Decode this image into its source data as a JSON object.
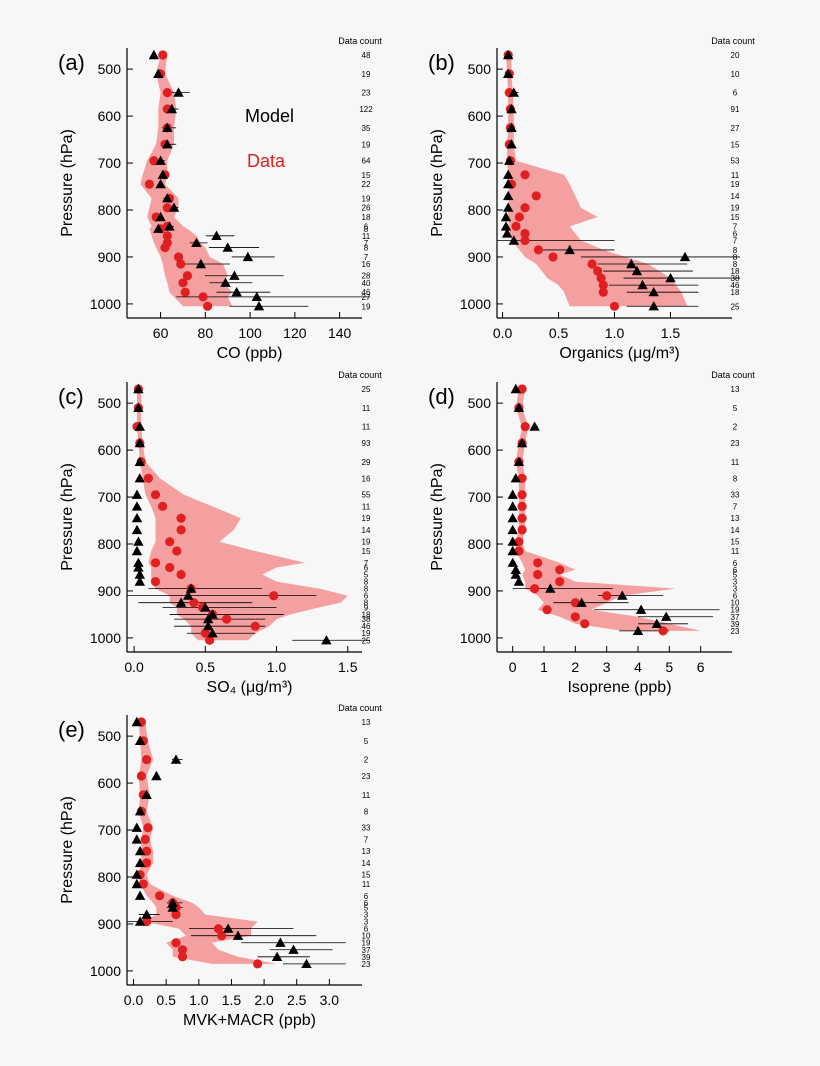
{
  "colors": {
    "data": "#e02020",
    "band": "#f59090",
    "model": "#000000",
    "background": "#f7f7f7"
  },
  "legend": {
    "model_label": "Model",
    "data_label": "Data"
  },
  "chart_data": [
    {
      "type": "scatter",
      "panel_label": "(a)",
      "xlabel": "CO (ppb)",
      "ylabel": "Pressure (hPa)",
      "xlim": [
        45,
        150
      ],
      "ylim": [
        1030,
        455
      ],
      "xticks": [
        "60",
        "80",
        "100",
        "120",
        "140"
      ],
      "yticks": [
        "500",
        "600",
        "700",
        "800",
        "900",
        "1000"
      ],
      "count_title": "Data count",
      "counts": [
        "48",
        "19",
        "23",
        "122",
        "35",
        "19",
        "64",
        "15",
        "22",
        "19",
        "26",
        "18",
        "6",
        "8",
        "11",
        "7",
        "8",
        "7",
        "16",
        "28",
        "40",
        "46",
        "27",
        "19"
      ],
      "pressure": [
        470,
        510,
        550,
        585,
        625,
        660,
        695,
        725,
        745,
        775,
        795,
        815,
        835,
        840,
        855,
        870,
        880,
        900,
        915,
        940,
        955,
        975,
        985,
        1005
      ],
      "data_values": [
        61,
        60,
        63,
        63,
        63,
        62,
        57,
        62,
        55,
        64,
        63,
        58,
        63,
        60,
        63,
        63,
        62,
        68,
        69,
        72,
        70,
        71,
        79,
        81
      ],
      "model_values": [
        57,
        59,
        68,
        65,
        63,
        63,
        60,
        61,
        60,
        63,
        66,
        60,
        64,
        59,
        85,
        76,
        90,
        99,
        78,
        93,
        89,
        94,
        103,
        104
      ],
      "model_err": [
        1,
        1,
        5,
        3,
        4,
        4,
        2,
        2,
        1,
        3,
        2,
        1,
        2,
        1,
        8,
        5,
        14,
        12,
        13,
        22,
        12,
        15,
        60,
        22
      ],
      "band_low": [
        60,
        58,
        60,
        59,
        59,
        58,
        54,
        52,
        51,
        56,
        55,
        54,
        56,
        55,
        56,
        57,
        58,
        60,
        61,
        62,
        63,
        64,
        66,
        70
      ],
      "band_high": [
        63,
        62,
        66,
        67,
        66,
        66,
        63,
        63,
        62,
        68,
        68,
        66,
        70,
        72,
        76,
        78,
        80,
        82,
        88,
        90,
        88,
        92,
        90,
        92
      ]
    },
    {
      "type": "scatter",
      "panel_label": "(b)",
      "xlabel": "Organics (μg/m³)",
      "ylabel": "Pressure (hPa)",
      "xlim": [
        -0.05,
        2.05
      ],
      "ylim": [
        1030,
        455
      ],
      "xticks": [
        "0.0",
        "0.5",
        "1.0",
        "1.5"
      ],
      "yticks": [
        "500",
        "600",
        "700",
        "800",
        "900",
        "1000"
      ],
      "count_title": "Data count",
      "counts": [
        "20",
        "10",
        "6",
        "91",
        "27",
        "15",
        "53",
        "11",
        "19",
        "14",
        "19",
        "15",
        "7",
        "6",
        "7",
        "8",
        "8",
        "8",
        "18",
        "38",
        "46",
        "18",
        "25"
      ],
      "pressure": [
        470,
        510,
        550,
        585,
        625,
        660,
        695,
        725,
        745,
        770,
        795,
        815,
        835,
        850,
        865,
        885,
        900,
        915,
        930,
        945,
        960,
        975,
        1005
      ],
      "data_values": [
        0.05,
        0.06,
        0.06,
        0.07,
        0.07,
        0.06,
        0.07,
        0.2,
        0.08,
        0.3,
        0.2,
        0.15,
        0.12,
        0.2,
        0.2,
        0.32,
        0.45,
        0.8,
        0.85,
        0.88,
        0.9,
        0.9,
        1.0
      ],
      "model_values": [
        0.05,
        0.05,
        0.1,
        0.08,
        0.08,
        0.08,
        0.06,
        0.05,
        0.05,
        0.05,
        0.05,
        0.03,
        0.03,
        0.04,
        0.1,
        0.6,
        1.63,
        1.15,
        1.2,
        1.5,
        1.25,
        1.35,
        1.35
      ],
      "model_err": [
        0.02,
        0.02,
        0.04,
        0.02,
        0.02,
        0.02,
        0.02,
        0.02,
        0.02,
        0.01,
        0.01,
        0.01,
        0.01,
        0.02,
        0.9,
        0.4,
        1.55,
        0.5,
        0.5,
        0.7,
        0.5,
        0.4,
        0.4
      ],
      "band_low": [
        0.03,
        0.04,
        0.05,
        0.05,
        0.05,
        0.04,
        0.04,
        0.05,
        0.05,
        0.06,
        0.05,
        0.05,
        0.06,
        0.06,
        0.08,
        0.15,
        0.2,
        0.3,
        0.35,
        0.4,
        0.5,
        0.55,
        0.6
      ],
      "band_high": [
        0.08,
        0.08,
        0.09,
        0.1,
        0.1,
        0.1,
        0.12,
        0.55,
        0.6,
        0.65,
        0.7,
        0.85,
        0.6,
        0.65,
        0.7,
        0.9,
        1.1,
        1.3,
        1.4,
        1.5,
        1.55,
        1.6,
        1.65
      ]
    },
    {
      "type": "scatter",
      "panel_label": "(c)",
      "xlabel": "SO₄ (μg/m³)",
      "ylabel": "Pressure (hPa)",
      "xlim": [
        -0.05,
        1.6
      ],
      "ylim": [
        1030,
        455
      ],
      "xticks": [
        "0.0",
        "0.5",
        "1.0",
        "1.5"
      ],
      "yticks": [
        "500",
        "600",
        "700",
        "800",
        "900",
        "1000"
      ],
      "count_title": "Data count",
      "counts": [
        "25",
        "11",
        "11",
        "93",
        "29",
        "16",
        "55",
        "11",
        "19",
        "14",
        "19",
        "15",
        "7",
        "6",
        "5",
        "8",
        "8",
        "6",
        "8",
        "9",
        "18",
        "38",
        "46",
        "19",
        "25"
      ],
      "pressure": [
        470,
        510,
        550,
        585,
        625,
        660,
        695,
        720,
        745,
        770,
        795,
        815,
        840,
        850,
        865,
        880,
        895,
        910,
        925,
        935,
        950,
        960,
        975,
        990,
        1005
      ],
      "data_values": [
        0.03,
        0.03,
        0.02,
        0.04,
        0.05,
        0.1,
        0.15,
        0.2,
        0.33,
        0.33,
        0.25,
        0.3,
        0.15,
        0.25,
        0.33,
        0.15,
        0.4,
        0.98,
        0.42,
        0.48,
        0.55,
        0.65,
        0.85,
        0.5,
        0.53
      ],
      "model_values": [
        0.03,
        0.03,
        0.04,
        0.04,
        0.04,
        0.04,
        0.02,
        0.02,
        0.02,
        0.02,
        0.03,
        0.02,
        0.03,
        0.03,
        0.04,
        0.04,
        0.4,
        0.38,
        0.33,
        0.5,
        0.55,
        0.52,
        0.52,
        0.55,
        1.35
      ],
      "model_err": [
        0.01,
        0.01,
        0.01,
        0.01,
        0.01,
        0.01,
        0.01,
        0.01,
        0.01,
        0.01,
        0.01,
        0.01,
        0.01,
        0.01,
        0.02,
        0.02,
        0.5,
        0.9,
        0.5,
        0.5,
        0.5,
        0.4,
        0.4,
        0.3,
        0.4
      ],
      "band_low": [
        0.02,
        0.02,
        0.02,
        0.03,
        0.04,
        0.06,
        0.08,
        0.12,
        0.15,
        0.15,
        0.15,
        0.12,
        0.1,
        0.12,
        0.12,
        0.12,
        0.15,
        0.25,
        0.25,
        0.3,
        0.3,
        0.35,
        0.4,
        0.4,
        0.45
      ],
      "band_high": [
        0.05,
        0.05,
        0.05,
        0.06,
        0.08,
        0.18,
        0.35,
        0.55,
        0.75,
        0.7,
        0.6,
        0.85,
        1.2,
        1.0,
        0.9,
        1.0,
        1.3,
        1.5,
        1.45,
        1.3,
        1.1,
        1.0,
        0.95,
        0.85,
        0.8
      ]
    },
    {
      "type": "scatter",
      "panel_label": "(d)",
      "xlabel": "Isoprene (ppb)",
      "ylabel": "Pressure (hPa)",
      "xlim": [
        -0.5,
        7.0
      ],
      "ylim": [
        1030,
        455
      ],
      "xticks": [
        "0",
        "1",
        "2",
        "3",
        "4",
        "5",
        "6"
      ],
      "yticks": [
        "500",
        "600",
        "700",
        "800",
        "900",
        "1000"
      ],
      "count_title": "Data count",
      "counts": [
        "13",
        "5",
        "2",
        "23",
        "11",
        "8",
        "33",
        "7",
        "13",
        "14",
        "15",
        "11",
        "6",
        "6",
        "5",
        "3",
        "3",
        "6",
        "10",
        "19",
        "37",
        "39",
        "23"
      ],
      "pressure": [
        470,
        510,
        550,
        585,
        625,
        660,
        695,
        720,
        745,
        770,
        795,
        815,
        840,
        855,
        865,
        880,
        895,
        910,
        925,
        940,
        955,
        970,
        985
      ],
      "data_values": [
        0.3,
        0.2,
        0.4,
        0.3,
        0.2,
        0.3,
        0.3,
        0.3,
        0.3,
        0.3,
        0.2,
        0.2,
        0.8,
        1.5,
        0.8,
        1.5,
        0.7,
        3.0,
        2.0,
        1.1,
        2.0,
        2.3,
        4.8
      ],
      "model_values": [
        0.1,
        0.2,
        0.7,
        0.3,
        0.2,
        0.1,
        0.0,
        0.0,
        0.0,
        0.0,
        0.0,
        0.0,
        0.0,
        0.1,
        0.1,
        0.2,
        1.2,
        3.5,
        2.2,
        4.1,
        4.9,
        4.6,
        4.0
      ],
      "model_err": [
        0.05,
        0.05,
        0.1,
        0.05,
        0.05,
        0.05,
        0.05,
        0.05,
        0.05,
        0.05,
        0.05,
        0.05,
        0.05,
        0.05,
        0.05,
        0.05,
        2.0,
        1.3,
        1.5,
        2.5,
        1.5,
        1.0,
        1.0
      ],
      "band_low": [
        0.2,
        0.1,
        0.3,
        0.2,
        0.1,
        0.2,
        0.2,
        0.2,
        0.2,
        0.2,
        0.1,
        0.1,
        0.3,
        0.4,
        0.3,
        0.4,
        0.4,
        0.8,
        1.0,
        0.8,
        1.5,
        2.0,
        3.5
      ],
      "band_high": [
        0.4,
        0.3,
        0.5,
        0.4,
        0.3,
        0.4,
        0.4,
        0.4,
        0.4,
        0.4,
        0.3,
        0.4,
        1.5,
        2.0,
        1.5,
        2.0,
        5.2,
        3.5,
        3.0,
        2.5,
        4.0,
        5.0,
        6.0
      ]
    },
    {
      "type": "scatter",
      "panel_label": "(e)",
      "xlabel": "MVK+MACR (ppb)",
      "ylabel": "Pressure (hPa)",
      "xlim": [
        -0.1,
        3.5
      ],
      "ylim": [
        1030,
        455
      ],
      "xticks": [
        "0.0",
        "0.5",
        "1.0",
        "1.5",
        "2.0",
        "2.5",
        "3.0"
      ],
      "yticks": [
        "500",
        "600",
        "700",
        "800",
        "900",
        "1000"
      ],
      "count_title": "Data count",
      "counts": [
        "13",
        "5",
        "2",
        "23",
        "11",
        "8",
        "33",
        "7",
        "13",
        "14",
        "15",
        "11",
        "6",
        "6",
        "5",
        "3",
        "3",
        "6",
        "10",
        "19",
        "37",
        "39",
        "23"
      ],
      "pressure": [
        470,
        510,
        550,
        585,
        625,
        660,
        695,
        720,
        745,
        770,
        795,
        815,
        840,
        855,
        865,
        880,
        895,
        910,
        925,
        940,
        955,
        970,
        985
      ],
      "data_values": [
        0.12,
        0.15,
        0.2,
        0.12,
        0.15,
        0.12,
        0.22,
        0.18,
        0.2,
        0.2,
        0.1,
        0.15,
        0.4,
        0.6,
        0.65,
        0.65,
        0.2,
        1.3,
        1.35,
        0.65,
        0.75,
        0.75,
        1.9
      ],
      "model_values": [
        0.05,
        0.1,
        0.65,
        0.35,
        0.2,
        0.1,
        0.05,
        0.05,
        0.1,
        0.1,
        0.05,
        0.05,
        0.1,
        0.6,
        0.6,
        0.2,
        0.1,
        1.45,
        1.6,
        2.25,
        2.45,
        2.2,
        2.65
      ],
      "model_err": [
        0.02,
        0.02,
        0.1,
        0.05,
        0.05,
        0.02,
        0.02,
        0.02,
        0.02,
        0.02,
        0.02,
        0.02,
        0.02,
        0.15,
        0.15,
        0.2,
        0.5,
        1.0,
        1.2,
        1.0,
        0.6,
        0.5,
        0.6
      ],
      "band_low": [
        0.08,
        0.1,
        0.12,
        0.08,
        0.1,
        0.08,
        0.15,
        0.12,
        0.12,
        0.12,
        0.08,
        0.1,
        0.2,
        0.3,
        0.35,
        0.35,
        0.15,
        0.7,
        0.8,
        0.5,
        0.6,
        0.6,
        1.2
      ],
      "band_high": [
        0.18,
        0.22,
        0.3,
        0.2,
        0.25,
        0.2,
        0.3,
        0.25,
        0.3,
        0.3,
        0.2,
        0.25,
        0.6,
        0.9,
        1.0,
        1.1,
        1.9,
        1.8,
        1.8,
        1.2,
        1.3,
        1.6,
        2.2
      ]
    }
  ]
}
